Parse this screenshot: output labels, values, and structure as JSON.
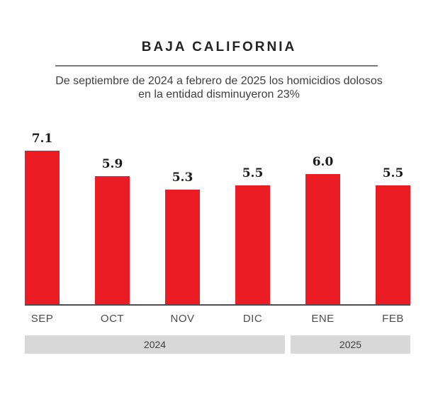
{
  "header": {
    "title": "BAJA CALIFORNIA",
    "subtitle_line1": "De septiembre de 2024 a febrero de 2025 los homicidios dolosos",
    "subtitle_line2": "en la entidad disminuyeron 23%"
  },
  "colors": {
    "bar": "#EC1C24",
    "year_band_bg": "#D8D8D8",
    "axis_line": "#4E4E50",
    "divider_line": "#7A7A7A",
    "title_text": "#262223",
    "subtitle_text": "#3F3F3F",
    "value_text": "#1E1A1B",
    "month_text": "#4C4C4E",
    "year_text": "#3F3F3F"
  },
  "chart_data": {
    "type": "bar",
    "title": "BAJA CALIFORNIA",
    "subtitle": "De septiembre de 2024 a febrero de 2025 los homicidios dolosos en la entidad disminuyeron 23%",
    "categories": [
      "SEP",
      "OCT",
      "NOV",
      "DIC",
      "ENE",
      "FEB"
    ],
    "values": [
      7.1,
      5.9,
      5.3,
      5.5,
      6.0,
      5.5
    ],
    "value_labels": [
      "7.1",
      "5.9",
      "5.3",
      "5.5",
      "6.0",
      "5.5"
    ],
    "xlabel": "",
    "ylabel": "",
    "ylim": [
      0,
      7.5
    ],
    "grid": false,
    "legend": "none",
    "year_groups": [
      {
        "label": "2024",
        "start": 0,
        "end": 3
      },
      {
        "label": "2025",
        "start": 4,
        "end": 5
      }
    ]
  }
}
